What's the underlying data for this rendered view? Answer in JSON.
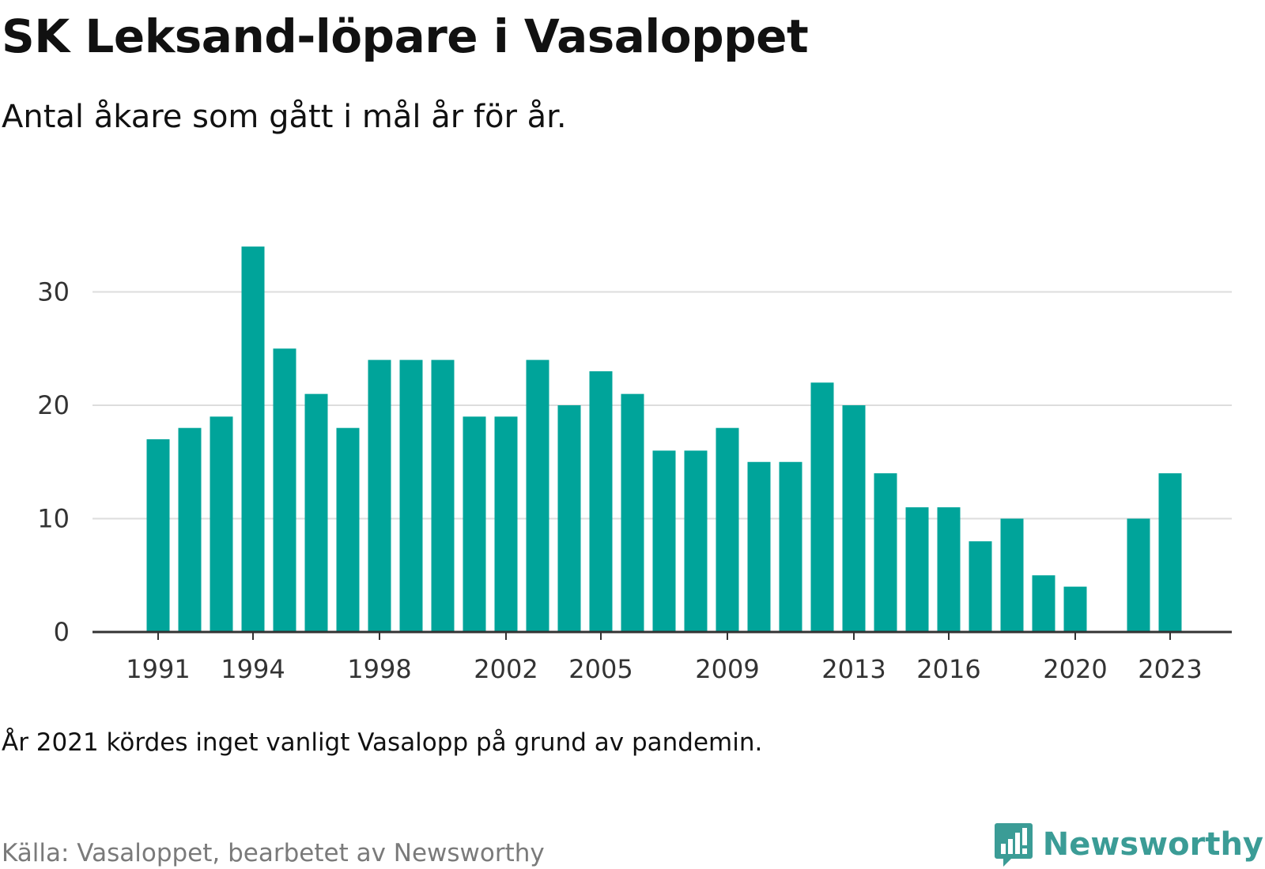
{
  "title": "SK Leksand-löpare i Vasaloppet",
  "subtitle": "Antal åkare som gått i mål år för år.",
  "note": "År 2021 kördes inget vanligt Vasalopp på grund av pandemin.",
  "source": "Källa: Vasaloppet, bearbetet av Newsworthy",
  "brand": {
    "name": "Newsworthy",
    "icon": "newsworthy-logo-icon"
  },
  "colors": {
    "bar": "#00a49a",
    "grid": "#dddddd",
    "axis": "#333333",
    "brand": "#3b9c96"
  },
  "chart_data": {
    "type": "bar",
    "x": [
      1991,
      1992,
      1993,
      1994,
      1995,
      1996,
      1997,
      1998,
      1999,
      2000,
      2001,
      2002,
      2003,
      2004,
      2005,
      2006,
      2007,
      2008,
      2009,
      2010,
      2011,
      2012,
      2013,
      2014,
      2015,
      2016,
      2017,
      2018,
      2019,
      2020,
      2021,
      2022,
      2023
    ],
    "values": [
      17,
      18,
      19,
      34,
      25,
      21,
      18,
      24,
      24,
      24,
      19,
      19,
      24,
      20,
      23,
      21,
      16,
      16,
      18,
      15,
      15,
      22,
      20,
      14,
      11,
      11,
      8,
      10,
      5,
      4,
      null,
      10,
      14
    ],
    "x_ticks": [
      "1991",
      "1994",
      "1998",
      "2002",
      "2005",
      "2009",
      "2013",
      "2016",
      "2020",
      "2023"
    ],
    "y_ticks": [
      0,
      10,
      20,
      30
    ],
    "ylim": [
      0,
      34
    ],
    "grid": true,
    "legend": "none"
  }
}
